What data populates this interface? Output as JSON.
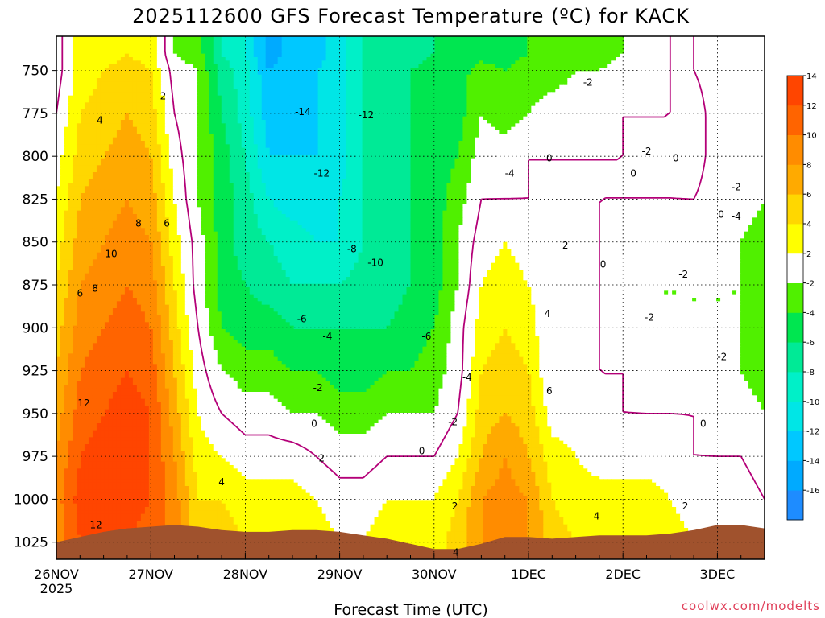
{
  "title": "2025112600 GFS Forecast Temperature (ºC) for KACK",
  "xlabel": "Forecast Time (UTC)",
  "credit": "coolwx.com/modelts",
  "colors": {
    "bands": [
      "#1e8cff",
      "#00aaff",
      "#00c8ff",
      "#00e6e6",
      "#00f0c8",
      "#00ea96",
      "#00e650",
      "#50f000",
      "#ffffff",
      "#ffff00",
      "#ffd700",
      "#ffaa00",
      "#ff8c00",
      "#ff6400",
      "#ff4500"
    ],
    "ground": "#a0522d",
    "zero_line": "#b40078"
  },
  "chart_data": {
    "type": "heatmap",
    "title": "2025112600 GFS Forecast Temperature (ºC) for KACK",
    "xlabel": "Forecast Time (UTC)",
    "ylabel": "",
    "x_ticks": [
      "26NOV\n2025",
      "27NOV",
      "28NOV",
      "29NOV",
      "30NOV",
      "1DEC",
      "2DEC",
      "3DEC"
    ],
    "xlim_days": [
      0,
      7.5
    ],
    "y_ticks": [
      750,
      775,
      800,
      825,
      850,
      875,
      900,
      925,
      950,
      975,
      1000,
      1025
    ],
    "ylim_hpa": [
      730,
      1035
    ],
    "y_axis": "pressure (hPa), inverted",
    "colorbar_levels": [
      -16,
      -14,
      -12,
      -10,
      -8,
      -6,
      -4,
      -2,
      2,
      4,
      6,
      8,
      10,
      12,
      14
    ],
    "colorbar_labels": [
      "-16",
      "-14",
      "-12",
      "-10",
      "-8",
      "-6",
      "-4",
      "-2",
      "2",
      "4",
      "6",
      "8",
      "10",
      "12",
      "14"
    ],
    "contour_interval": 2,
    "grid": true,
    "x": [
      0.0,
      0.25,
      0.5,
      0.75,
      1.0,
      1.25,
      1.5,
      1.75,
      2.0,
      2.25,
      2.5,
      2.75,
      3.0,
      3.25,
      3.5,
      3.75,
      4.0,
      4.25,
      4.5,
      4.75,
      5.0,
      5.25,
      5.5,
      5.75,
      6.0,
      6.25,
      6.5,
      6.75,
      7.0,
      7.25,
      7.5
    ],
    "levels_hpa": [
      740,
      750,
      775,
      800,
      825,
      850,
      875,
      900,
      925,
      950,
      975,
      1000,
      1025
    ],
    "temperature_c": [
      [
        -1,
        3,
        3,
        4,
        3,
        -2,
        -3,
        -8,
        -10,
        -15,
        -13,
        -13,
        -11,
        -8,
        -7,
        -7,
        -6,
        -6,
        -5,
        -5,
        -4,
        -4,
        -3,
        -3,
        -2,
        -2,
        0,
        0,
        -1,
        -1,
        -2
      ],
      [
        -1,
        3,
        4,
        5,
        4,
        -1,
        -2,
        -7,
        -9,
        -14,
        -13,
        -12,
        -11,
        -8,
        -7,
        -6,
        -5,
        -5,
        -3,
        -4,
        -3,
        -3,
        -2,
        -2,
        -1,
        -1,
        0,
        0,
        -1,
        -1,
        -2
      ],
      [
        0,
        4,
        5,
        6,
        5,
        0,
        -2,
        -6,
        -9,
        -13,
        -13,
        -12,
        -11,
        -8,
        -7,
        -6,
        -5,
        -5,
        -2,
        -3,
        -2,
        -1,
        -1,
        -1,
        0,
        0,
        0,
        1,
        -1,
        -1,
        -2
      ],
      [
        1,
        5,
        6,
        7,
        6,
        1,
        -2,
        -5,
        -8,
        -12,
        -12,
        -12,
        -11,
        -8,
        -7,
        -6,
        -5,
        -4,
        -1,
        -1,
        0,
        0,
        0,
        0,
        0,
        0,
        0,
        1,
        -1,
        -1,
        -2
      ],
      [
        2,
        6,
        7,
        8,
        7,
        2,
        -2,
        -5,
        -7,
        -10,
        -11,
        -11,
        -10,
        -8,
        -7,
        -6,
        -5,
        -3,
        0,
        0,
        0,
        0,
        0,
        0,
        0,
        0,
        0,
        0,
        -1,
        -1,
        -2
      ],
      [
        3,
        7,
        8,
        9,
        8,
        3,
        -1,
        -5,
        -7,
        -8,
        -9,
        -10,
        -10,
        -8,
        -7,
        -6,
        -5,
        -2,
        1,
        2,
        1,
        0,
        0,
        0,
        -1,
        -1,
        -1,
        -1,
        -1,
        -2,
        -3
      ],
      [
        4,
        8,
        9,
        10,
        9,
        4,
        -1,
        -5,
        -6,
        -7,
        -8,
        -8,
        -8,
        -7,
        -7,
        -6,
        -5,
        -2,
        2,
        3,
        2,
        0,
        0,
        0,
        -1,
        -2,
        -2,
        -2,
        -2,
        -2,
        -3
      ],
      [
        5,
        9,
        10,
        11,
        10,
        5,
        0,
        -4,
        -5,
        -5,
        -6,
        -6,
        -6,
        -6,
        -6,
        -5,
        -4,
        -1,
        3,
        4,
        3,
        0,
        0,
        0,
        -1,
        -2,
        -2,
        -2,
        -2,
        -2,
        -3
      ],
      [
        6,
        10,
        11,
        12,
        11,
        6,
        1,
        -2,
        -3,
        -3,
        -4,
        -4,
        -5,
        -5,
        -4,
        -4,
        -3,
        -1,
        4,
        5,
        4,
        0,
        0,
        0,
        0,
        -1,
        -1,
        -1,
        -1,
        -2,
        -3
      ],
      [
        7,
        11,
        12,
        13,
        12,
        7,
        2,
        0,
        -1,
        -1,
        -2,
        -2,
        -3,
        -3,
        -2,
        -2,
        -2,
        0,
        5,
        6,
        5,
        1,
        1,
        0,
        0,
        0,
        0,
        0,
        -1,
        -1,
        -2
      ],
      [
        8,
        12,
        13,
        13,
        12,
        8,
        3,
        2,
        1,
        1,
        1,
        0,
        -1,
        -1,
        0,
        0,
        0,
        2,
        6,
        8,
        6,
        3,
        2,
        1,
        1,
        1,
        1,
        0,
        0,
        0,
        -1
      ],
      [
        9,
        13,
        13,
        13,
        12,
        9,
        4,
        4,
        3,
        3,
        3,
        2,
        1,
        1,
        2,
        2,
        2,
        4,
        8,
        9,
        8,
        4,
        3,
        3,
        3,
        3,
        2,
        1,
        1,
        1,
        0
      ],
      [
        9,
        12,
        12,
        12,
        11,
        9,
        5,
        5,
        4,
        4,
        4,
        3,
        2,
        2,
        3,
        3,
        3,
        5,
        8,
        10,
        8,
        5,
        4,
        4,
        4,
        4,
        3,
        2,
        2,
        2,
        1
      ]
    ],
    "surface_pressure_hpa": [
      1025,
      1022,
      1019,
      1017,
      1016,
      1015,
      1016,
      1018,
      1019,
      1019,
      1018,
      1018,
      1019,
      1021,
      1023,
      1026,
      1029,
      1029,
      1026,
      1022,
      1022,
      1023,
      1022,
      1021,
      1021,
      1021,
      1020,
      1018,
      1015,
      1015,
      1017
    ],
    "contour_labels": [
      {
        "text": "2",
        "x": 1.13,
        "y": 765
      },
      {
        "text": "4",
        "x": 0.46,
        "y": 779
      },
      {
        "text": "8",
        "x": 0.87,
        "y": 839
      },
      {
        "text": "6",
        "x": 1.17,
        "y": 839
      },
      {
        "text": "10",
        "x": 0.58,
        "y": 857
      },
      {
        "text": "6",
        "x": 0.25,
        "y": 880
      },
      {
        "text": "8",
        "x": 0.41,
        "y": 877
      },
      {
        "text": "12",
        "x": 0.29,
        "y": 944
      },
      {
        "text": "12",
        "x": 0.42,
        "y": 1015
      },
      {
        "text": "4",
        "x": 1.75,
        "y": 990
      },
      {
        "text": "-14",
        "x": 2.61,
        "y": 774
      },
      {
        "text": "-12",
        "x": 3.28,
        "y": 776
      },
      {
        "text": "-12",
        "x": 2.81,
        "y": 810
      },
      {
        "text": "-8",
        "x": 3.13,
        "y": 854
      },
      {
        "text": "-10",
        "x": 3.38,
        "y": 862
      },
      {
        "text": "-6",
        "x": 2.6,
        "y": 895
      },
      {
        "text": "-4",
        "x": 2.87,
        "y": 905
      },
      {
        "text": "-6",
        "x": 3.92,
        "y": 905
      },
      {
        "text": "-2",
        "x": 2.77,
        "y": 935
      },
      {
        "text": "-4",
        "x": 4.35,
        "y": 929
      },
      {
        "text": "-2",
        "x": 4.2,
        "y": 955
      },
      {
        "text": "0",
        "x": 2.73,
        "y": 956
      },
      {
        "text": "2",
        "x": 2.81,
        "y": 976
      },
      {
        "text": "0",
        "x": 3.87,
        "y": 972
      },
      {
        "text": "2",
        "x": 4.22,
        "y": 1004
      },
      {
        "text": "4",
        "x": 4.23,
        "y": 1031
      },
      {
        "text": "-2",
        "x": 5.63,
        "y": 757
      },
      {
        "text": "0",
        "x": 5.22,
        "y": 801
      },
      {
        "text": "-4",
        "x": 4.8,
        "y": 810
      },
      {
        "text": "0",
        "x": 6.11,
        "y": 810
      },
      {
        "text": "0",
        "x": 6.56,
        "y": 801
      },
      {
        "text": "-2",
        "x": 6.25,
        "y": 797
      },
      {
        "text": "-2",
        "x": 7.2,
        "y": 818
      },
      {
        "text": "0",
        "x": 7.04,
        "y": 834
      },
      {
        "text": "-4",
        "x": 7.2,
        "y": 835
      },
      {
        "text": "2",
        "x": 5.39,
        "y": 852
      },
      {
        "text": "0",
        "x": 5.79,
        "y": 863
      },
      {
        "text": "-2",
        "x": 6.64,
        "y": 869
      },
      {
        "text": "4",
        "x": 5.2,
        "y": 892
      },
      {
        "text": "-2",
        "x": 6.28,
        "y": 894
      },
      {
        "text": "6",
        "x": 5.22,
        "y": 937
      },
      {
        "text": "-2",
        "x": 7.05,
        "y": 917
      },
      {
        "text": "0",
        "x": 6.85,
        "y": 956
      },
      {
        "text": "4",
        "x": 5.72,
        "y": 1010
      },
      {
        "text": "2",
        "x": 6.66,
        "y": 1004
      }
    ]
  }
}
